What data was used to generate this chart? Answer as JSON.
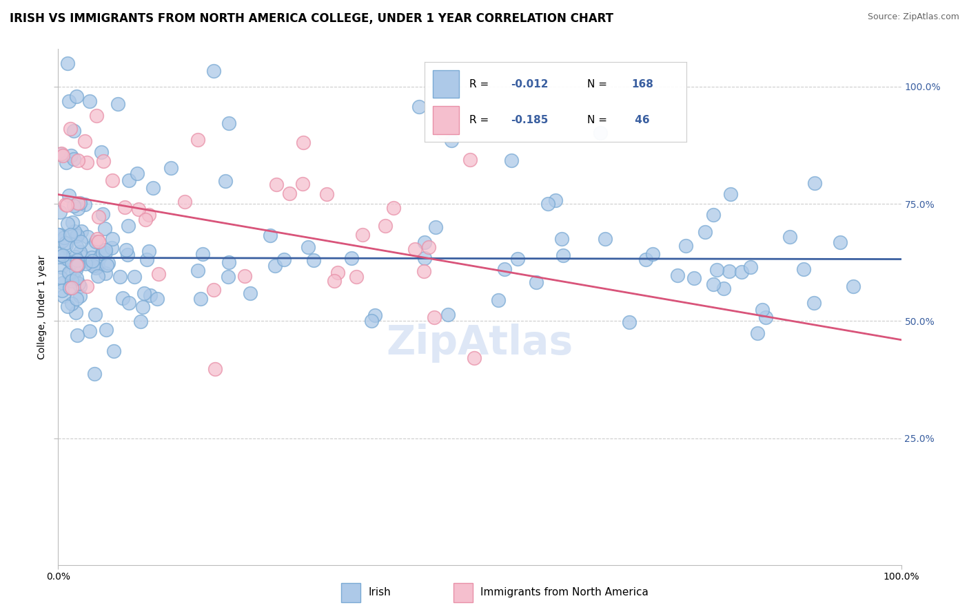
{
  "title": "IRISH VS IMMIGRANTS FROM NORTH AMERICA COLLEGE, UNDER 1 YEAR CORRELATION CHART",
  "source": "Source: ZipAtlas.com",
  "ylabel": "College, Under 1 year",
  "xlim": [
    0.0,
    1.0
  ],
  "ylim": [
    -0.02,
    1.08
  ],
  "y_tick_values": [
    0.25,
    0.5,
    0.75,
    1.0
  ],
  "irish_color": "#adc9e8",
  "irish_edge_color": "#7aaad4",
  "immigrant_color": "#f5bfce",
  "immigrant_edge_color": "#e890a8",
  "irish_line_color": "#3a5fa0",
  "immigrant_line_color": "#d9547a",
  "irish_dashed_color": "#aaaaaa",
  "watermark_color": "#c8d8f0",
  "title_fontsize": 12,
  "axis_fontsize": 10,
  "legend_R_color": "#3a5fa0",
  "legend_N_color": "#3a5fa0",
  "irish_R": -0.012,
  "irish_N": 168,
  "immigrant_R": -0.185,
  "immigrant_N": 46,
  "irish_line_intercept": 0.635,
  "irish_line_slope": -0.003,
  "immigrant_line_start_y": 0.77,
  "immigrant_line_end_y": 0.46
}
